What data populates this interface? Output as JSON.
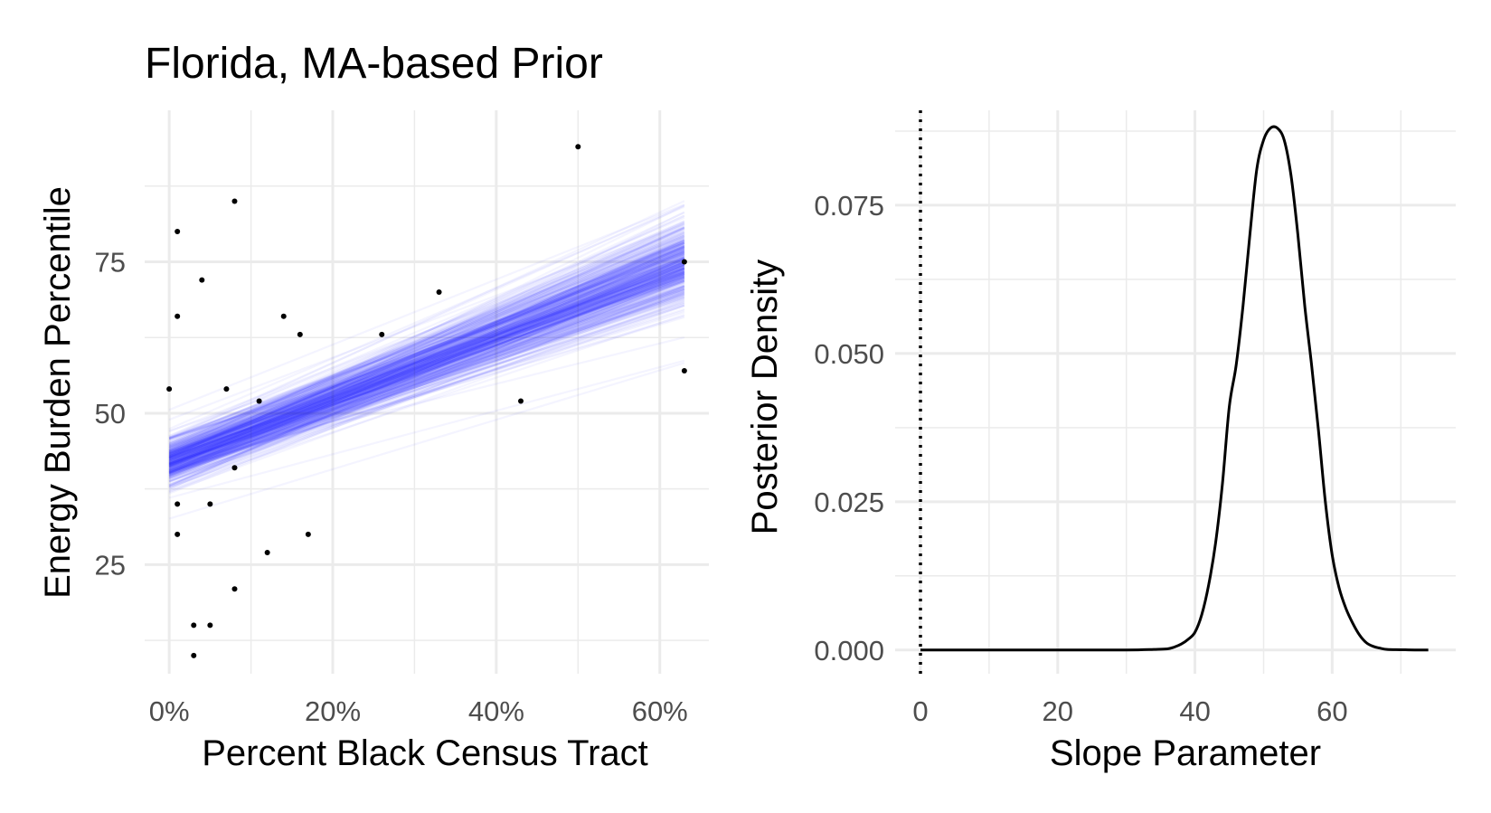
{
  "chart_data": [
    {
      "type": "scatter",
      "title": "Florida, MA-based Prior",
      "xlabel": "Percent Black Census Tract",
      "ylabel": "Energy Burden Percentile",
      "xlim": [
        -0.03,
        0.66
      ],
      "ylim": [
        7,
        100
      ],
      "x_ticks": [
        0,
        0.2,
        0.4,
        0.6
      ],
      "x_tick_labels": [
        "0%",
        "20%",
        "40%",
        "60%"
      ],
      "y_ticks": [
        25,
        50,
        75
      ],
      "y_tick_labels": [
        "25",
        "50",
        "75"
      ],
      "grid": true,
      "points": [
        {
          "x": 0.0,
          "y": 54
        },
        {
          "x": 0.01,
          "y": 80
        },
        {
          "x": 0.01,
          "y": 66
        },
        {
          "x": 0.01,
          "y": 35
        },
        {
          "x": 0.01,
          "y": 30
        },
        {
          "x": 0.03,
          "y": 15
        },
        {
          "x": 0.03,
          "y": 10
        },
        {
          "x": 0.04,
          "y": 72
        },
        {
          "x": 0.05,
          "y": 35
        },
        {
          "x": 0.05,
          "y": 15
        },
        {
          "x": 0.07,
          "y": 54
        },
        {
          "x": 0.08,
          "y": 85
        },
        {
          "x": 0.08,
          "y": 41
        },
        {
          "x": 0.08,
          "y": 21
        },
        {
          "x": 0.11,
          "y": 52
        },
        {
          "x": 0.12,
          "y": 27
        },
        {
          "x": 0.14,
          "y": 66
        },
        {
          "x": 0.16,
          "y": 63
        },
        {
          "x": 0.17,
          "y": 30
        },
        {
          "x": 0.26,
          "y": 63
        },
        {
          "x": 0.33,
          "y": 70
        },
        {
          "x": 0.43,
          "y": 52
        },
        {
          "x": 0.5,
          "y": 94
        },
        {
          "x": 0.63,
          "y": 75
        },
        {
          "x": 0.63,
          "y": 57
        }
      ],
      "posterior_lines": {
        "x_range": [
          0.0,
          0.63
        ],
        "intercept_mean": 42,
        "intercept_sd": 2.2,
        "slope_mean": 52,
        "slope_sd": 4.6,
        "color": "#1f1fff"
      }
    },
    {
      "type": "line",
      "title": "",
      "xlabel": "Slope Parameter",
      "ylabel": "Posterior Density",
      "xlim": [
        0,
        78
      ],
      "ylim": [
        -0.004,
        0.091
      ],
      "x_ticks": [
        0,
        20,
        40,
        60
      ],
      "x_tick_labels": [
        "0",
        "20",
        "40",
        "60"
      ],
      "y_ticks": [
        0,
        0.025,
        0.05,
        0.075
      ],
      "y_tick_labels": [
        "0.000",
        "0.025",
        "0.050",
        "0.075"
      ],
      "grid": true,
      "reference_line": {
        "x": 0,
        "style": "dotted"
      },
      "series": [
        {
          "color": "#000000",
          "x": [
            0,
            10,
            20,
            30,
            34,
            36,
            37,
            38,
            39,
            40,
            41,
            42,
            43,
            44,
            45,
            46,
            47,
            48,
            49,
            50,
            51,
            52,
            53,
            54,
            55,
            56,
            57,
            58,
            59,
            60,
            61,
            62,
            63,
            64,
            65,
            66,
            67,
            68,
            70,
            72,
            74
          ],
          "y": [
            0,
            0,
            0,
            0,
            0.0001,
            0.0002,
            0.0005,
            0.001,
            0.0018,
            0.003,
            0.006,
            0.011,
            0.018,
            0.028,
            0.041,
            0.048,
            0.058,
            0.07,
            0.081,
            0.086,
            0.088,
            0.088,
            0.086,
            0.08,
            0.07,
            0.058,
            0.048,
            0.037,
            0.025,
            0.016,
            0.0105,
            0.007,
            0.0045,
            0.0025,
            0.0012,
            0.0006,
            0.0003,
            0.0001,
            5e-05,
            0,
            0
          ]
        }
      ]
    }
  ]
}
